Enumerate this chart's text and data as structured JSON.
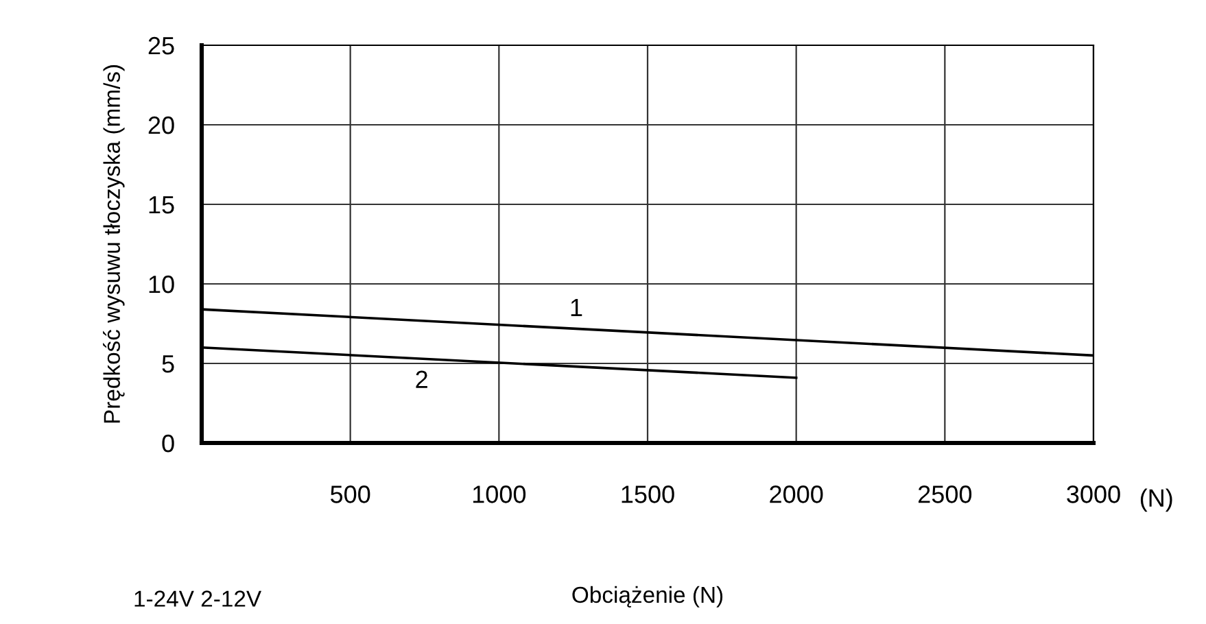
{
  "chart_data": {
    "type": "line",
    "xlabel": "Obciążenie (N)",
    "ylabel": "Prędkość wysuwu tłoczyska (mm/s)",
    "series": [
      {
        "name": "1",
        "color": "#000000",
        "x": [
          0,
          3000
        ],
        "values": [
          8.4,
          5.5
        ]
      },
      {
        "name": "2",
        "color": "#000000",
        "x": [
          0,
          2000
        ],
        "values": [
          6.0,
          4.1
        ]
      }
    ],
    "xlim": [
      0,
      3000
    ],
    "xticks": [
      {
        "value": 0,
        "label": null
      },
      500,
      1000,
      1500,
      2000,
      2500,
      3000
    ],
    "ylim": [
      0,
      25
    ],
    "yticks": [
      0,
      5,
      10,
      15,
      20,
      25
    ],
    "grid": true,
    "legend": false,
    "marker": "none",
    "line_style": "solid",
    "annotations": [
      "(N)",
      "1-24V 2-12V"
    ]
  }
}
